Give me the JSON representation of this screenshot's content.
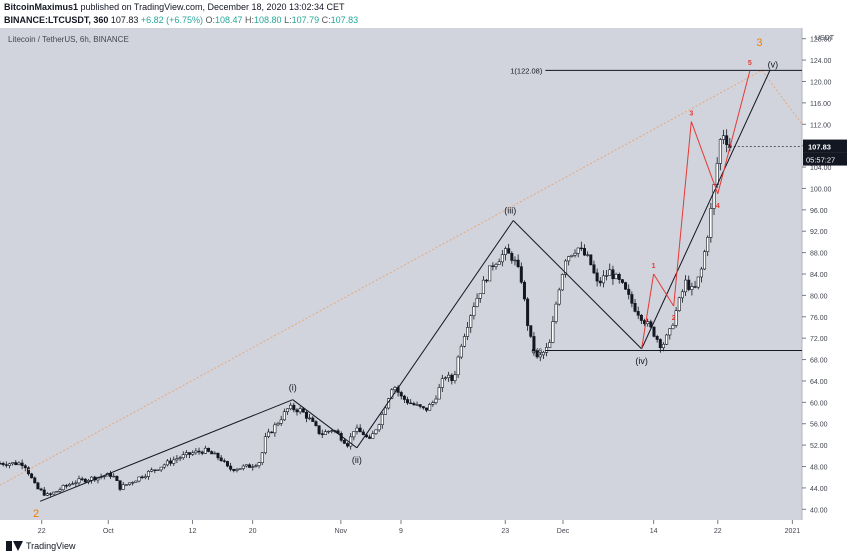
{
  "header": {
    "publisher": "BitcoinMaximus1",
    "published_text": "published on TradingView.com, December 18, 2020 13:02:34 CET",
    "symbol": "BINANCE:LTCUSDT, 360",
    "last": "107.83",
    "change": "+6.82 (+6.75%)",
    "o_label": "O:",
    "o_value": "108.47",
    "h_label": "H:",
    "h_value": "108.80",
    "l_label": "L:",
    "l_value": "107.79",
    "c_label": "C:",
    "c_value": "107.83"
  },
  "chart_header": "Litecoin / TetherUS, 6h, BINANCE",
  "footer": {
    "brand": "TradingView"
  },
  "colors": {
    "plot_bg": "#d1d4dc",
    "wave_line": "#131722",
    "projection": "#e53935",
    "subwave_label": "#e53935",
    "degree_label": "#f57c00",
    "dotted_trend": "#e8a87c"
  },
  "chart_data": {
    "type": "candlestick",
    "title": "Litecoin / TetherUS, 6h, BINANCE",
    "y_unit": "USDT",
    "ylim": [
      38,
      130
    ],
    "y_ticks": [
      40,
      44,
      48,
      52,
      56,
      60,
      64,
      68,
      72,
      76,
      80,
      84,
      88,
      92,
      96,
      100,
      104,
      108,
      112,
      116,
      120,
      124,
      128
    ],
    "x_ticks": [
      "22",
      "Oct",
      "12",
      "20",
      "Nov",
      "9",
      "23",
      "Dec",
      "14",
      "22",
      "2021"
    ],
    "last_price_tag": "107.83",
    "countdown_tag": "05:57:27",
    "fib_levels": [
      {
        "label": "1(122.08)",
        "value": 122.08
      },
      {
        "label": "0(6",
        "value": 69.7
      }
    ],
    "wave_pivots": [
      {
        "label": "",
        "value": 41.5
      },
      {
        "label": "(i)",
        "value": 60.5
      },
      {
        "label": "(ii)",
        "value": 51.5
      },
      {
        "label": "(iii)",
        "value": 94.0
      },
      {
        "label": "(iv)",
        "value": 70.0
      },
      {
        "label": "(v)",
        "value": 122.08
      }
    ],
    "subwaves": [
      {
        "label": "1",
        "value": 84.0
      },
      {
        "label": "2",
        "value": 78.0
      },
      {
        "label": "3",
        "value": 112.5
      },
      {
        "label": "4",
        "value": 99.0
      },
      {
        "label": "5",
        "value": 122.0
      }
    ],
    "degree_labels": [
      "2",
      "3"
    ],
    "price_path": [
      [
        0.0,
        48.6
      ],
      [
        0.03,
        48.6
      ],
      [
        0.045,
        44.0
      ],
      [
        0.06,
        42.5
      ],
      [
        0.09,
        45.0
      ],
      [
        0.12,
        46.0
      ],
      [
        0.14,
        46.5
      ],
      [
        0.15,
        44.0
      ],
      [
        0.18,
        46.5
      ],
      [
        0.2,
        48.0
      ],
      [
        0.22,
        49.5
      ],
      [
        0.24,
        50.5
      ],
      [
        0.255,
        51.0
      ],
      [
        0.275,
        49.5
      ],
      [
        0.285,
        47.5
      ],
      [
        0.31,
        48.0
      ],
      [
        0.325,
        49.0
      ],
      [
        0.33,
        53.0
      ],
      [
        0.345,
        56.0
      ],
      [
        0.36,
        59.0
      ],
      [
        0.375,
        58.5
      ],
      [
        0.385,
        57.0
      ],
      [
        0.4,
        54.0
      ],
      [
        0.415,
        55.0
      ],
      [
        0.435,
        52.0
      ],
      [
        0.44,
        55.0
      ],
      [
        0.455,
        54.0
      ],
      [
        0.46,
        52.5
      ],
      [
        0.475,
        57.0
      ],
      [
        0.49,
        63.5
      ],
      [
        0.5,
        61.0
      ],
      [
        0.51,
        60.0
      ],
      [
        0.53,
        58.5
      ],
      [
        0.54,
        60.0
      ],
      [
        0.555,
        65.0
      ],
      [
        0.565,
        64.0
      ],
      [
        0.575,
        71.0
      ],
      [
        0.59,
        78.0
      ],
      [
        0.605,
        83.0
      ],
      [
        0.615,
        86.0
      ],
      [
        0.63,
        88.0
      ],
      [
        0.64,
        87.0
      ],
      [
        0.65,
        83.0
      ],
      [
        0.66,
        72.5
      ],
      [
        0.67,
        68.0
      ],
      [
        0.685,
        70.5
      ],
      [
        0.695,
        80.0
      ],
      [
        0.705,
        87.0
      ],
      [
        0.72,
        89.0
      ],
      [
        0.735,
        86.5
      ],
      [
        0.745,
        82.0
      ],
      [
        0.76,
        84.5
      ],
      [
        0.775,
        82.0
      ],
      [
        0.79,
        78.0
      ],
      [
        0.8,
        76.0
      ],
      [
        0.815,
        73.0
      ],
      [
        0.825,
        70.5
      ],
      [
        0.835,
        73.0
      ],
      [
        0.845,
        78.0
      ],
      [
        0.855,
        82.5
      ],
      [
        0.865,
        80.5
      ],
      [
        0.875,
        85.0
      ],
      [
        0.883,
        92.0
      ],
      [
        0.89,
        100.0
      ],
      [
        0.9,
        111.0
      ],
      [
        0.91,
        107.8
      ]
    ]
  }
}
